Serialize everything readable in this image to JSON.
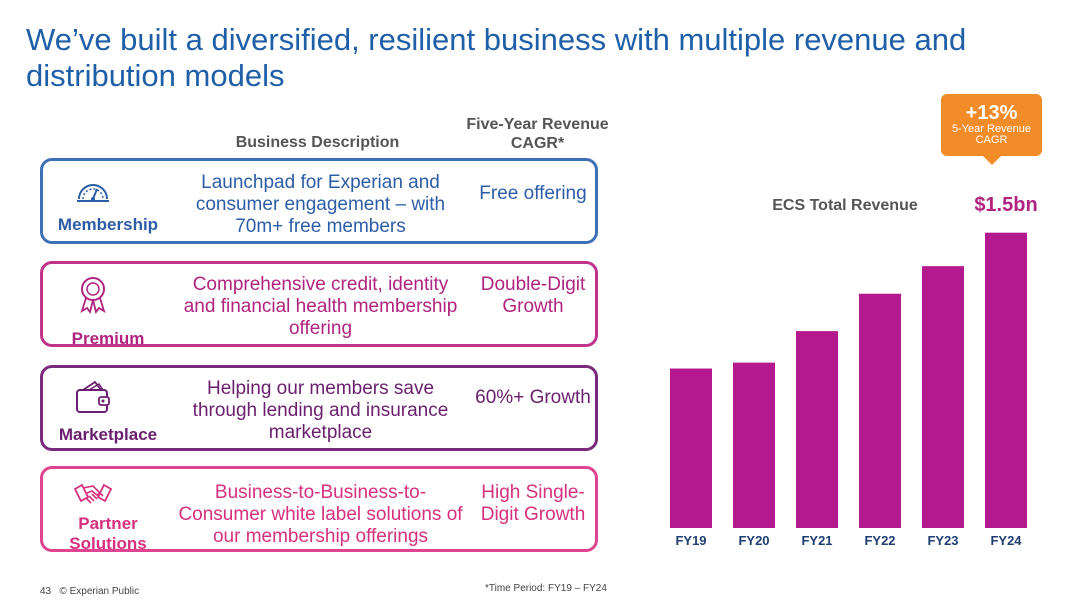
{
  "title": "We’ve built a diversified, resilient business with multiple revenue and distribution models",
  "headers": {
    "business_description": "Business Description",
    "cagr": "Five-Year Revenue CAGR*"
  },
  "segments": [
    {
      "label": "Membership",
      "icon": "gauge-icon",
      "description": "Launchpad for Experian and consumer engagement – with 70m+ free members",
      "cagr": "Free offering"
    },
    {
      "label": "Premium",
      "icon": "award-ribbon-icon",
      "description": "Comprehensive credit, identity and financial health membership offering",
      "cagr": "Double-Digit Growth"
    },
    {
      "label": "Marketplace",
      "icon": "wallet-icon",
      "description": "Helping our members save through lending and insurance marketplace",
      "cagr": "60%+ Growth"
    },
    {
      "label": "Partner Solutions",
      "icon": "handshake-icon",
      "description": "Business-to-Business-to-Consumer white label solutions of our membership offerings",
      "cagr": "High Single-Digit Growth"
    }
  ],
  "badge": {
    "value": "+13%",
    "caption": "5-Year Revenue CAGR"
  },
  "chart_title": "ECS Total Revenue",
  "chart_value": "$1.5bn",
  "chart_data": {
    "type": "bar",
    "title": "ECS Total Revenue",
    "categories": [
      "FY19",
      "FY20",
      "FY21",
      "FY22",
      "FY23",
      "FY24"
    ],
    "values": [
      0.81,
      0.84,
      1.0,
      1.19,
      1.33,
      1.5
    ],
    "annotations": [
      "$1.5bn"
    ],
    "ylim": [
      0,
      1.6
    ],
    "grid": false,
    "legend": "none"
  },
  "colors": {
    "bar": "#b4198f",
    "title": "#1f5fa8",
    "badge": "#f28c28"
  },
  "footer": {
    "page": "43",
    "classification": "© Experian Public",
    "note": "*Time Period: FY19 – FY24"
  }
}
